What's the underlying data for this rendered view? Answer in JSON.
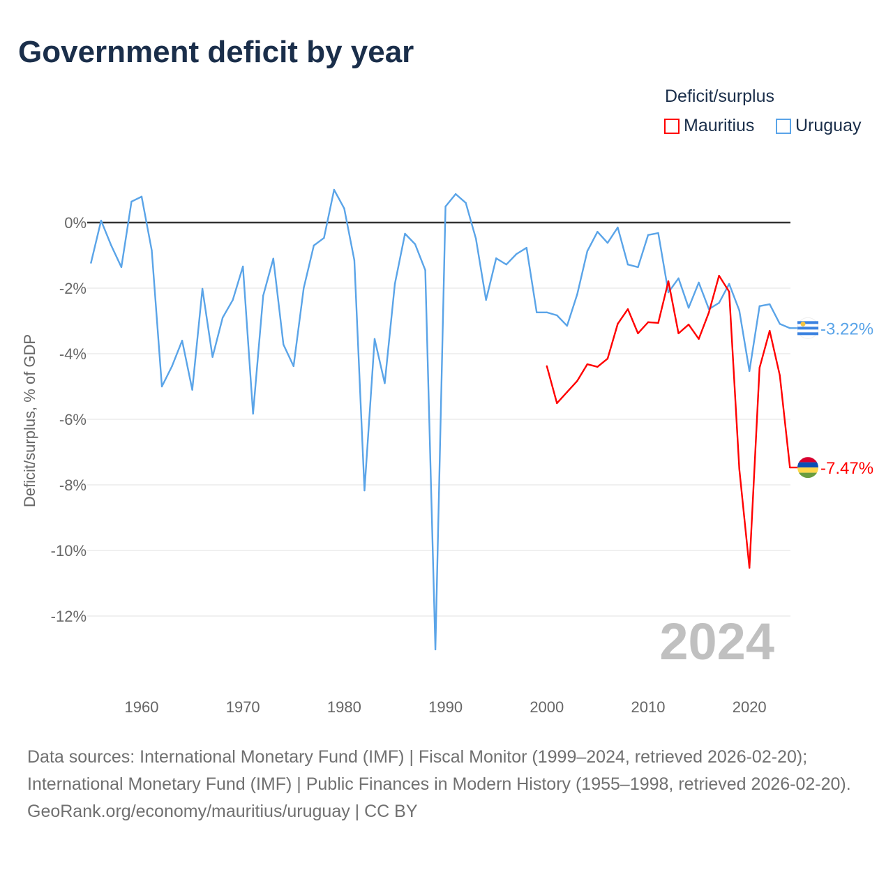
{
  "title": "Government deficit by year",
  "legend": {
    "title": "Deficit/surplus",
    "items": [
      {
        "name": "Mauritius",
        "color": "#ff0000"
      },
      {
        "name": "Uruguay",
        "color": "#5aa4e8"
      }
    ]
  },
  "year_label": "2024",
  "footer": {
    "line1": "Data sources: International Monetary Fund (IMF) | Fiscal Monitor (1999–2024, retrieved 2026-02-20); International Monetary Fund (IMF) | Public Finances in Modern History (1955–1998, retrieved 2026-02-20).",
    "line2": "GeoRank.org/economy/mauritius/uruguay | CC BY"
  },
  "chart_data": {
    "type": "line",
    "title": "Government deficit by year",
    "xlabel": "",
    "ylabel": "Deficit/surplus, % of GDP",
    "xlim": [
      1955,
      2024
    ],
    "ylim": [
      -13.5,
      1.5
    ],
    "xticks": [
      1960,
      1970,
      1980,
      1990,
      2000,
      2010,
      2020
    ],
    "yticks": [
      0,
      -2,
      -4,
      -6,
      -8,
      -10,
      -12
    ],
    "ytick_labels": [
      "0%",
      "-2%",
      "-4%",
      "-6%",
      "-8%",
      "-10%",
      "-12%"
    ],
    "series": [
      {
        "name": "Uruguay",
        "color": "#5aa4e8",
        "end_label": "-3.22%",
        "start_year": 1955,
        "values": [
          -1.23,
          0.06,
          -0.7,
          -1.36,
          0.64,
          0.79,
          -0.85,
          -5.0,
          -4.38,
          -3.6,
          -5.1,
          -2.02,
          -4.1,
          -2.9,
          -2.36,
          -1.34,
          -5.83,
          -2.23,
          -1.1,
          -3.72,
          -4.38,
          -2.0,
          -0.7,
          -0.47,
          1.0,
          0.43,
          -1.15,
          -8.17,
          -3.55,
          -4.9,
          -1.87,
          -0.34,
          -0.66,
          -1.45,
          -13.02,
          0.49,
          0.87,
          0.6,
          -0.49,
          -2.36,
          -1.09,
          -1.28,
          -0.96,
          -0.77,
          -2.74,
          -2.74,
          -2.83,
          -3.15,
          -2.19,
          -0.87,
          -0.28,
          -0.62,
          -0.15,
          -1.28,
          -1.36,
          -0.38,
          -0.32,
          -2.13,
          -1.7,
          -2.6,
          -1.83,
          -2.64,
          -2.45,
          -1.87,
          -2.68,
          -4.53,
          -2.55,
          -2.49,
          -3.09,
          -3.22
        ]
      },
      {
        "name": "Mauritius",
        "color": "#ff0000",
        "end_label": "-7.47%",
        "start_year": 2000,
        "values": [
          -4.38,
          -5.51,
          -5.17,
          -4.83,
          -4.32,
          -4.4,
          -4.15,
          -3.09,
          -2.64,
          -3.38,
          -3.04,
          -3.06,
          -1.79,
          -3.38,
          -3.11,
          -3.55,
          -2.74,
          -1.62,
          -2.11,
          -7.51,
          -10.53,
          -4.43,
          -3.3,
          -4.66,
          -7.47
        ]
      }
    ]
  }
}
